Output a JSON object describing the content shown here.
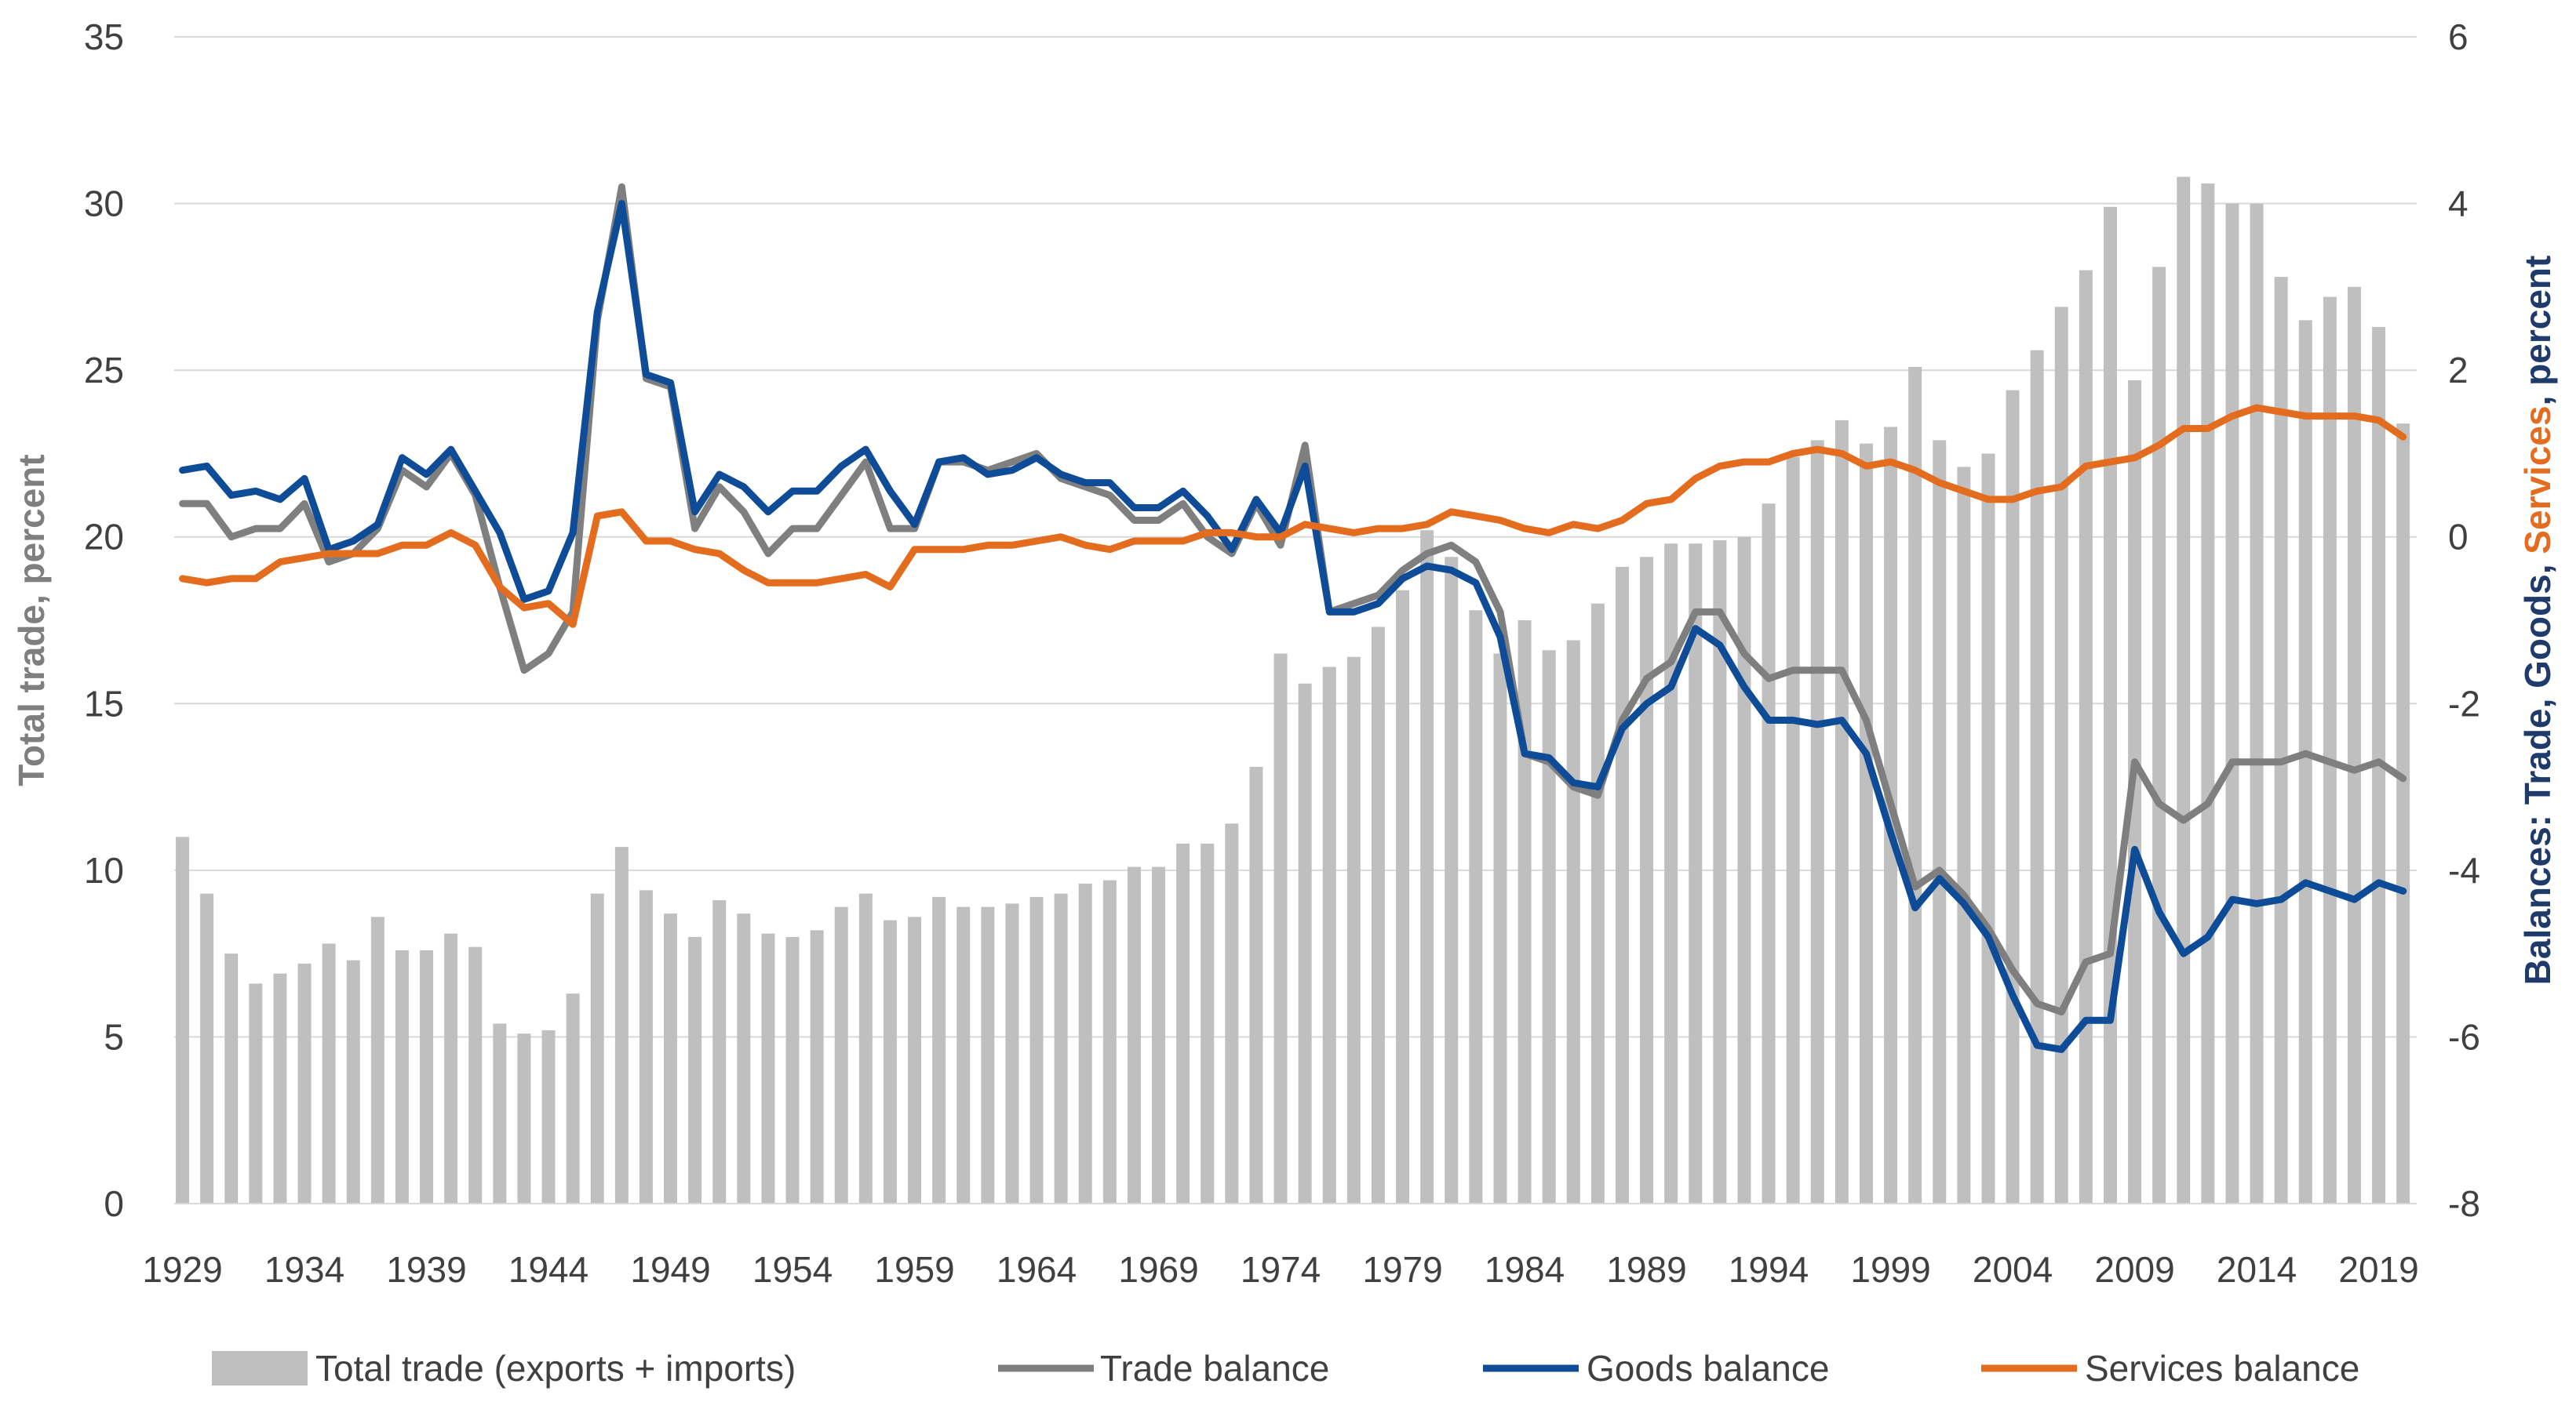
{
  "chart_data": {
    "type": "bar+line",
    "title": "",
    "x_start": 1929,
    "x_end": 2020,
    "x_tick_labels": [
      "1929",
      "1934",
      "1939",
      "1944",
      "1949",
      "1954",
      "1959",
      "1964",
      "1969",
      "1974",
      "1979",
      "1984",
      "1989",
      "1994",
      "1999",
      "2004",
      "2009",
      "2014",
      "2019"
    ],
    "left_axis": {
      "label": "Total trade, percent",
      "min": 0,
      "max": 35,
      "ticks": [
        0,
        5,
        10,
        15,
        20,
        25,
        30,
        35
      ]
    },
    "right_axis": {
      "label_parts": [
        {
          "text": "Balances: Trade, ",
          "color": "#1f3b6b"
        },
        {
          "text": "Goods",
          "color": "#1f3b6b"
        },
        {
          "text": ", ",
          "color": "#1f3b6b"
        },
        {
          "text": "Services",
          "color": "#e46c1e"
        },
        {
          "text": ", percent",
          "color": "#1f3b6b"
        }
      ],
      "min": -8,
      "max": 6,
      "ticks": [
        -8,
        -6,
        -4,
        -2,
        0,
        2,
        4,
        6
      ]
    },
    "grid": "horizontal",
    "legend_position": "bottom",
    "colors": {
      "total_trade": "#bfbfbf",
      "trade_balance": "#7f7f7f",
      "goods_balance": "#0f4c97",
      "services_balance": "#e46c1e",
      "grid": "#d9d9d9",
      "left_label": "#7f7f7f"
    },
    "series": [
      {
        "name": "Total trade (exports + imports)",
        "axis": "left",
        "kind": "bar",
        "values": [
          11.0,
          9.3,
          7.5,
          6.6,
          6.9,
          7.2,
          7.8,
          7.3,
          8.6,
          7.6,
          7.6,
          8.1,
          7.7,
          5.4,
          5.1,
          5.2,
          6.3,
          9.3,
          10.7,
          9.4,
          8.7,
          8.0,
          9.1,
          8.7,
          8.1,
          8.0,
          8.2,
          8.9,
          9.3,
          8.5,
          8.6,
          9.2,
          8.9,
          8.9,
          9.0,
          9.2,
          9.3,
          9.6,
          9.7,
          10.1,
          10.1,
          10.8,
          10.8,
          11.4,
          13.1,
          16.5,
          15.6,
          16.1,
          16.4,
          17.3,
          18.4,
          20.2,
          19.4,
          17.8,
          16.5,
          17.5,
          16.6,
          16.9,
          18.0,
          19.1,
          19.4,
          19.8,
          19.8,
          19.9,
          20.0,
          21.0,
          22.4,
          22.9,
          23.5,
          22.8,
          23.3,
          25.1,
          22.9,
          22.1,
          22.5,
          24.4,
          25.6,
          26.9,
          28.0,
          29.9,
          24.7,
          28.1,
          30.8,
          30.6,
          30.0,
          30.0,
          27.8,
          26.5,
          27.2,
          27.5,
          26.3,
          23.4
        ]
      },
      {
        "name": "Trade balance",
        "axis": "right",
        "kind": "line",
        "values": [
          0.4,
          0.4,
          0.0,
          0.1,
          0.1,
          0.4,
          -0.3,
          -0.2,
          0.1,
          0.8,
          0.6,
          1.0,
          0.5,
          -0.6,
          -1.6,
          -1.4,
          -0.9,
          2.6,
          4.2,
          1.9,
          1.8,
          0.1,
          0.6,
          0.3,
          -0.2,
          0.1,
          0.1,
          0.5,
          0.9,
          0.1,
          0.1,
          0.9,
          0.9,
          0.8,
          0.9,
          1.0,
          0.7,
          0.6,
          0.5,
          0.2,
          0.2,
          0.4,
          0.0,
          -0.2,
          0.4,
          -0.1,
          1.1,
          -0.9,
          -0.8,
          -0.7,
          -0.4,
          -0.2,
          -0.1,
          -0.3,
          -0.9,
          -2.6,
          -2.7,
          -3.0,
          -3.1,
          -2.2,
          -1.7,
          -1.5,
          -0.9,
          -0.9,
          -1.4,
          -1.7,
          -1.6,
          -1.6,
          -1.6,
          -2.2,
          -3.2,
          -4.2,
          -4.0,
          -4.3,
          -4.7,
          -5.2,
          -5.6,
          -5.7,
          -5.1,
          -5.0,
          -2.7,
          -3.2,
          -3.4,
          -3.2,
          -2.7,
          -2.7,
          -2.7,
          -2.6,
          -2.7,
          -2.8,
          -2.7,
          -2.9
        ]
      },
      {
        "name": "Goods balance",
        "axis": "right",
        "kind": "line",
        "values": [
          0.8,
          0.85,
          0.5,
          0.55,
          0.45,
          0.7,
          -0.15,
          -0.05,
          0.15,
          0.95,
          0.75,
          1.05,
          0.55,
          0.05,
          -0.75,
          -0.65,
          0.05,
          2.7,
          4.0,
          1.95,
          1.85,
          0.3,
          0.75,
          0.6,
          0.3,
          0.55,
          0.55,
          0.85,
          1.05,
          0.55,
          0.15,
          0.9,
          0.95,
          0.75,
          0.8,
          0.95,
          0.75,
          0.65,
          0.65,
          0.35,
          0.35,
          0.55,
          0.25,
          -0.15,
          0.45,
          0.05,
          0.85,
          -0.9,
          -0.9,
          -0.8,
          -0.5,
          -0.35,
          -0.4,
          -0.55,
          -1.2,
          -2.6,
          -2.65,
          -2.95,
          -3.0,
          -2.3,
          -2.0,
          -1.8,
          -1.1,
          -1.3,
          -1.8,
          -2.2,
          -2.2,
          -2.25,
          -2.2,
          -2.6,
          -3.55,
          -4.45,
          -4.1,
          -4.4,
          -4.8,
          -5.5,
          -6.1,
          -6.15,
          -5.8,
          -5.8,
          -3.75,
          -4.5,
          -5.0,
          -4.8,
          -4.35,
          -4.4,
          -4.35,
          -4.15,
          -4.25,
          -4.35,
          -4.15,
          -4.25
        ]
      },
      {
        "name": "Services balance",
        "axis": "right",
        "kind": "line",
        "values": [
          -0.5,
          -0.55,
          -0.5,
          -0.5,
          -0.3,
          -0.25,
          -0.2,
          -0.2,
          -0.2,
          -0.1,
          -0.1,
          0.05,
          -0.1,
          -0.6,
          -0.85,
          -0.8,
          -1.05,
          0.25,
          0.3,
          -0.05,
          -0.05,
          -0.15,
          -0.2,
          -0.4,
          -0.55,
          -0.55,
          -0.55,
          -0.5,
          -0.45,
          -0.6,
          -0.15,
          -0.15,
          -0.15,
          -0.1,
          -0.1,
          -0.05,
          0.0,
          -0.1,
          -0.15,
          -0.05,
          -0.05,
          -0.05,
          0.05,
          0.05,
          0.0,
          0.0,
          0.15,
          0.1,
          0.05,
          0.1,
          0.1,
          0.15,
          0.3,
          0.25,
          0.2,
          0.1,
          0.05,
          0.15,
          0.1,
          0.2,
          0.4,
          0.45,
          0.7,
          0.85,
          0.9,
          0.9,
          1.0,
          1.05,
          1.0,
          0.85,
          0.9,
          0.8,
          0.65,
          0.55,
          0.45,
          0.45,
          0.55,
          0.6,
          0.85,
          0.9,
          0.95,
          1.1,
          1.3,
          1.3,
          1.45,
          1.55,
          1.5,
          1.45,
          1.45,
          1.45,
          1.4,
          1.2
        ]
      }
    ],
    "legend": [
      {
        "label": "Total trade (exports + imports)",
        "kind": "bar",
        "color": "#bfbfbf"
      },
      {
        "label": "Trade balance",
        "kind": "line",
        "color": "#7f7f7f"
      },
      {
        "label": "Goods balance",
        "kind": "line",
        "color": "#0f4c97"
      },
      {
        "label": "Services balance",
        "kind": "line",
        "color": "#e46c1e"
      }
    ]
  }
}
